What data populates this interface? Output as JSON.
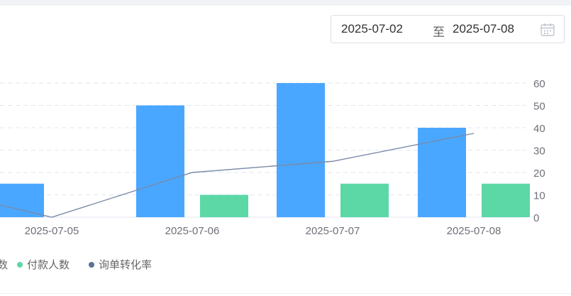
{
  "date_range": {
    "start": "2025-07-02",
    "separator": "至",
    "end": "2025-07-08"
  },
  "legend": {
    "partial_first": "数",
    "items": [
      {
        "label": "付款人数",
        "color": "#5bd8a6"
      },
      {
        "label": "询单转化率",
        "color": "#5b7095"
      }
    ]
  },
  "chart_data": {
    "type": "bar",
    "categories": [
      "2025-07-05",
      "2025-07-06",
      "2025-07-07",
      "2025-07-08"
    ],
    "series": [
      {
        "type": "bar",
        "color": "#4aa7ff",
        "values": [
          15,
          50,
          60,
          40
        ]
      },
      {
        "name": "付款人数",
        "type": "bar",
        "color": "#5bd8a6",
        "values": [
          0,
          10,
          15,
          15
        ]
      },
      {
        "name": "询单转化率",
        "type": "line",
        "color": "#7a8aa8",
        "values": [
          0,
          20,
          25,
          37.5
        ]
      }
    ],
    "y_ticks": [
      0,
      10,
      20,
      30,
      40,
      50,
      60
    ],
    "ylim": [
      0,
      60
    ],
    "y_axis_position": "right",
    "grid": true
  }
}
